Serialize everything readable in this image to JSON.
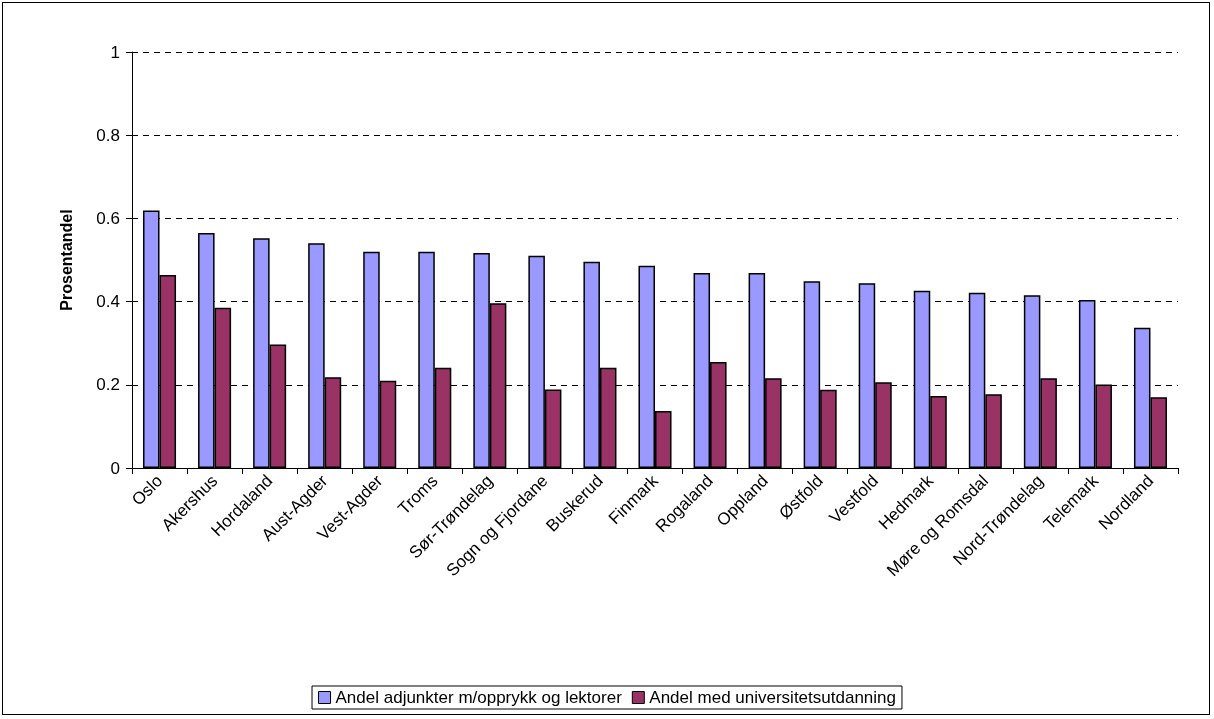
{
  "chart_data": {
    "type": "bar",
    "ylabel": "Prosentandel",
    "categories": [
      "Oslo",
      "Akershus",
      "Hordaland",
      "Aust-Agder",
      "Vest-Agder",
      "Troms",
      "Sør-Trøndelag",
      "Sogn og Fjordane",
      "Buskerud",
      "Finmark",
      "Rogaland",
      "Oppland",
      "Østfold",
      "Vestfold",
      "Hedmark",
      "Møre og Romsdal",
      "Nord-Trøndelag",
      "Telemark",
      "Nordland"
    ],
    "series": [
      {
        "name": "Andel adjunkter m/opprykk og lektorer",
        "color": "#9999ff",
        "values": [
          0.619,
          0.565,
          0.552,
          0.54,
          0.52,
          0.52,
          0.517,
          0.51,
          0.496,
          0.486,
          0.469,
          0.469,
          0.449,
          0.444,
          0.426,
          0.421,
          0.415,
          0.404,
          0.337
        ]
      },
      {
        "name": "Andel med universitetsutdanning",
        "color": "#993366",
        "values": [
          0.464,
          0.385,
          0.297,
          0.218,
          0.21,
          0.241,
          0.396,
          0.189,
          0.241,
          0.137,
          0.255,
          0.216,
          0.188,
          0.206,
          0.173,
          0.177,
          0.216,
          0.201,
          0.17
        ]
      }
    ],
    "ylim": [
      0,
      1
    ],
    "yticks": [
      0,
      0.2,
      0.4,
      0.6,
      0.8,
      1
    ],
    "grid": "y",
    "legend": "bottom"
  }
}
